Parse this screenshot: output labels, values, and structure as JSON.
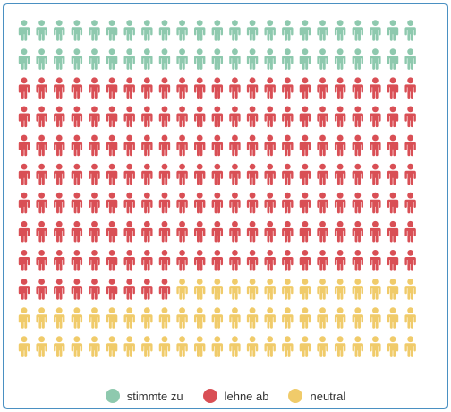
{
  "chart_data": {
    "type": "waffle",
    "title": "",
    "grid": {
      "rows": 12,
      "columns": 23
    },
    "icon": "person-icon",
    "series": [
      {
        "name": "stimmte zu",
        "count": 46,
        "color": "#8ec9ae"
      },
      {
        "name": "lehne ab",
        "count": 170,
        "color": "#d94f55"
      },
      {
        "name": "neutral",
        "count": 60,
        "color": "#f0cb6a"
      }
    ],
    "legend": {
      "position": "bottom"
    }
  }
}
